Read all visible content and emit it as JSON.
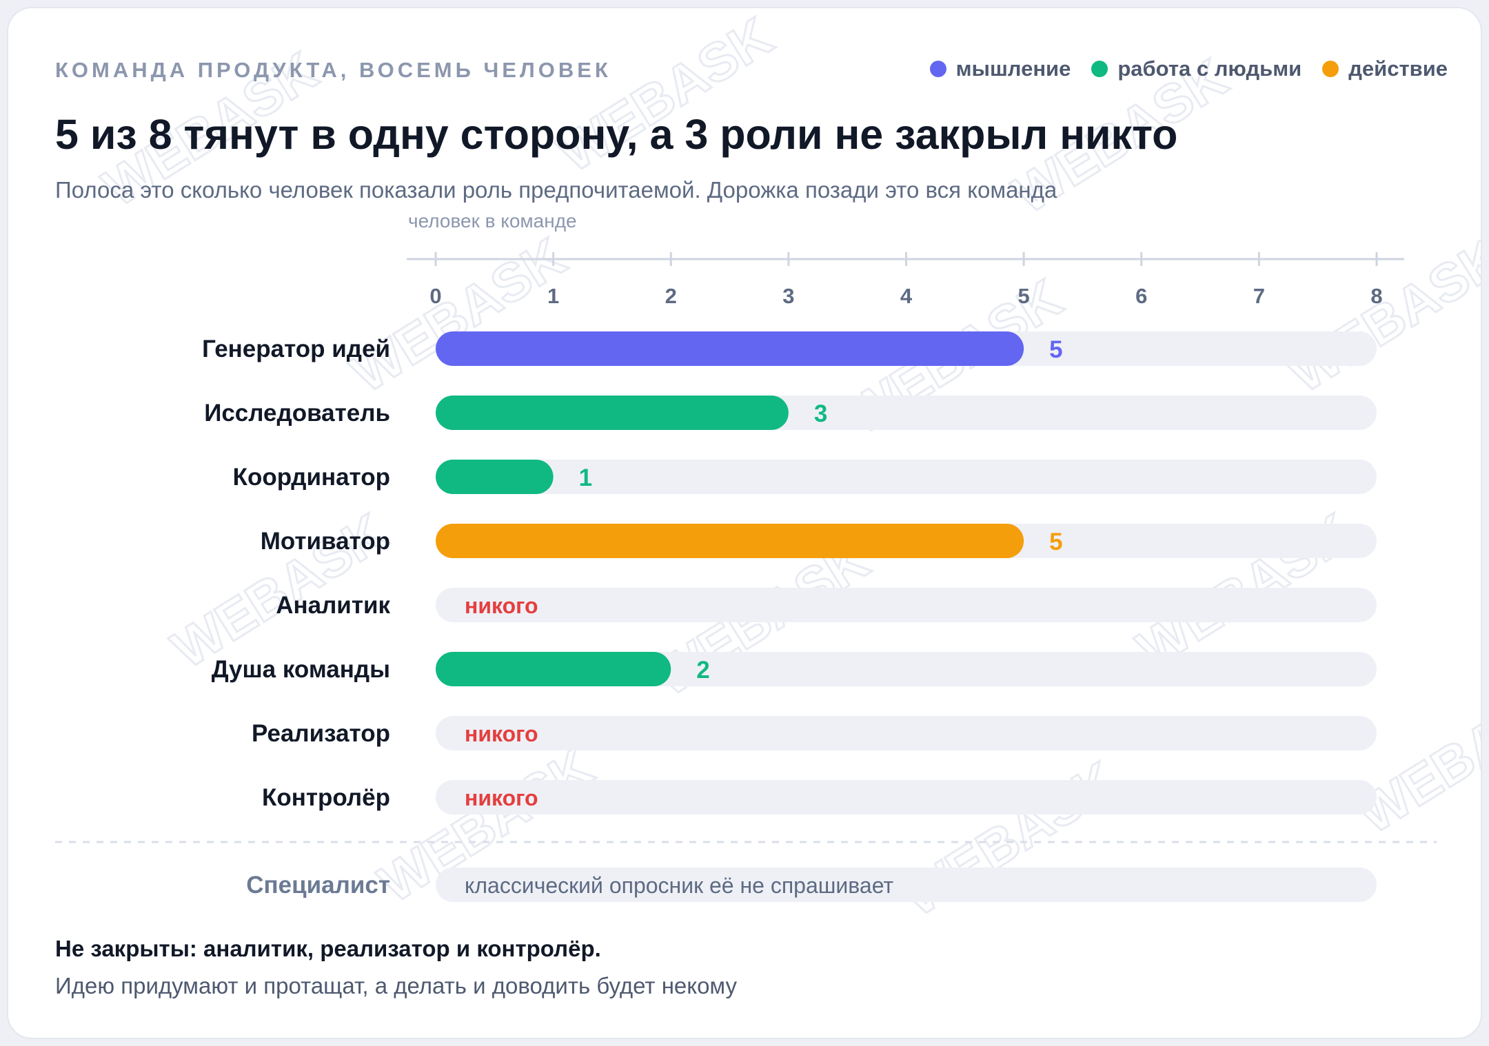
{
  "header": {
    "eyebrow": "КОМАНДА ПРОДУКТА, ВОСЕМЬ ЧЕЛОВЕК",
    "title": "5 из 8 тянут в одну сторону, а 3 роли не закрыл никто",
    "subtitle": "Полоса это сколько человек показали роль предпочитаемой. Дорожка позади это вся команда"
  },
  "legend": [
    {
      "label": "мышление",
      "color": "#6366f1"
    },
    {
      "label": "работа с людьми",
      "color": "#10b981"
    },
    {
      "label": "действие",
      "color": "#f59e0b"
    }
  ],
  "colors": {
    "track": "#eef0f6",
    "none": "#e53e3e",
    "axis": "#ced4e0",
    "watermark": "#e8ebf2"
  },
  "watermark": "WEBASK",
  "chart_data": {
    "type": "bar",
    "orientation": "horizontal",
    "xlabel": "человек в команде",
    "xlim": [
      0,
      8
    ],
    "xticks": [
      "0",
      "1",
      "2",
      "3",
      "4",
      "5",
      "6",
      "7",
      "8"
    ],
    "categories": [
      "Генератор идей",
      "Исследователь",
      "Координатор",
      "Мотиватор",
      "Аналитик",
      "Душа команды",
      "Реализатор",
      "Контролёр"
    ],
    "values": [
      5,
      3,
      1,
      5,
      0,
      2,
      0,
      0
    ],
    "value_labels": [
      "5",
      "3",
      "1",
      "5",
      "никого",
      "2",
      "никого",
      "никого"
    ],
    "groups": [
      "мышление",
      "работа с людьми",
      "работа с людьми",
      "действие",
      "мышление",
      "работа с людьми",
      "действие",
      "действие"
    ],
    "extra_row": {
      "label": "Специалист",
      "note": "классический опросник её не спрашивает"
    },
    "grid": false,
    "legend_position": "top-right"
  },
  "footer": {
    "conclusion": "Не закрыты: аналитик, реализатор и контролёр.",
    "note": "Идею придумают и протащат, а делать и доводить будет некому"
  }
}
